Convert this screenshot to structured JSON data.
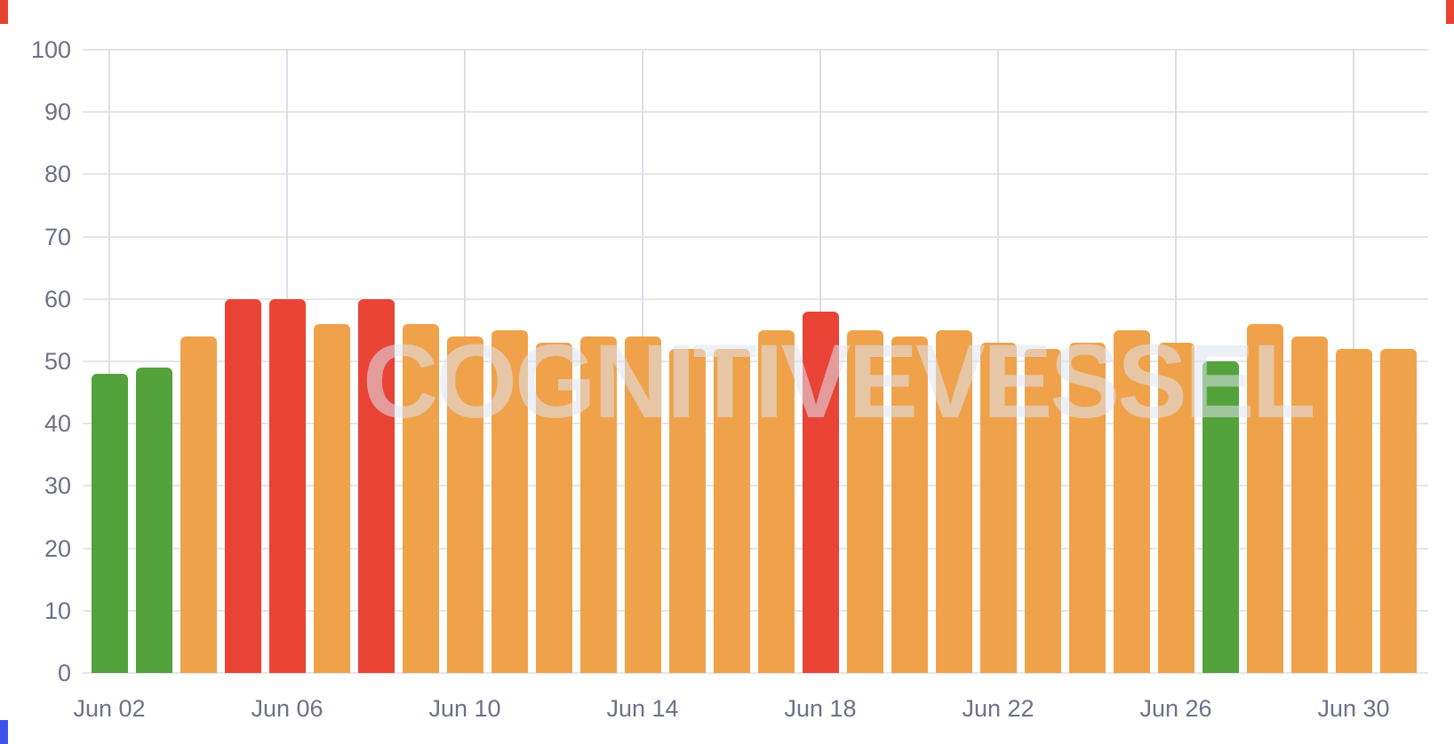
{
  "watermark": "COGNITIVEVESSEL",
  "chart_data": {
    "type": "bar",
    "title": "",
    "xlabel": "",
    "ylabel": "",
    "x": [
      "Jun 02",
      "Jun 03",
      "Jun 04",
      "Jun 05",
      "Jun 06",
      "Jun 07",
      "Jun 08",
      "Jun 09",
      "Jun 10",
      "Jun 11",
      "Jun 12",
      "Jun 13",
      "Jun 14",
      "Jun 15",
      "Jun 16",
      "Jun 17",
      "Jun 18",
      "Jun 19",
      "Jun 20",
      "Jun 21",
      "Jun 22",
      "Jun 23",
      "Jun 24",
      "Jun 25",
      "Jun 26",
      "Jun 27",
      "Jun 28",
      "Jun 29",
      "Jun 30",
      "Jul 01"
    ],
    "values": [
      48,
      49,
      54,
      60,
      60,
      56,
      60,
      56,
      54,
      55,
      53,
      54,
      54,
      52,
      52,
      55,
      58,
      55,
      54,
      55,
      53,
      52,
      53,
      55,
      53,
      50,
      56,
      54,
      52,
      52
    ],
    "bar_colors": [
      "green",
      "green",
      "orange",
      "red",
      "red",
      "orange",
      "red",
      "orange",
      "orange",
      "orange",
      "orange",
      "orange",
      "orange",
      "orange",
      "orange",
      "orange",
      "red",
      "orange",
      "orange",
      "orange",
      "orange",
      "orange",
      "orange",
      "orange",
      "orange",
      "green",
      "orange",
      "orange",
      "orange",
      "orange"
    ],
    "palette": {
      "green": "#54a23b",
      "orange": "#f0a24b",
      "red": "#e84335"
    },
    "ylim": [
      0,
      100
    ],
    "yticks": [
      0,
      10,
      20,
      30,
      40,
      50,
      60,
      70,
      80,
      90,
      100
    ],
    "xticks_shown": [
      "Jun 02",
      "Jun 06",
      "Jun 10",
      "Jun 14",
      "Jun 18",
      "Jun 22",
      "Jun 26",
      "Jun 30"
    ],
    "grid": true,
    "legend_position": "none",
    "axis_label_color": "#6e7089"
  },
  "decorations": {
    "top_left_marker_color": "#e7432e",
    "top_right_marker_color": "#e7432e",
    "bottom_left_marker_color": "#3d55e6"
  }
}
